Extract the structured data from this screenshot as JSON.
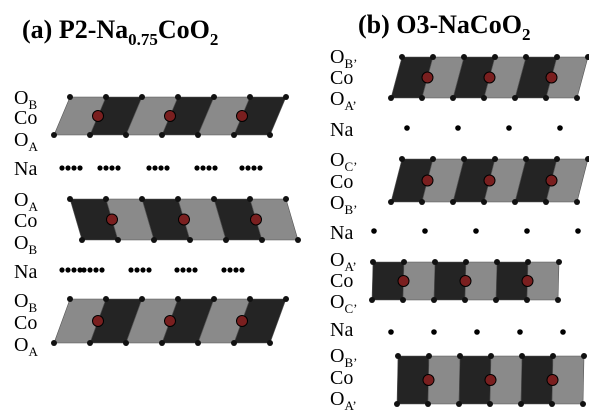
{
  "panels": [
    {
      "id": "a",
      "title": {
        "prefix": "(a) P2-Na",
        "sub1": "0.75",
        "mid": "CoO",
        "sub2": "2"
      },
      "layer_labels": [
        {
          "main": "O",
          "sub": "B"
        },
        {
          "main": "Co",
          "sub": ""
        },
        {
          "main": "O",
          "sub": "A"
        },
        {
          "main": "Na",
          "sub": ""
        },
        {
          "main": "O",
          "sub": "A"
        },
        {
          "main": "Co",
          "sub": ""
        },
        {
          "main": "O",
          "sub": "B"
        },
        {
          "main": "Na",
          "sub": ""
        },
        {
          "main": "O",
          "sub": "B"
        },
        {
          "main": "Co",
          "sub": ""
        },
        {
          "main": "O",
          "sub": "A"
        }
      ]
    },
    {
      "id": "b",
      "title": {
        "prefix": "(b) O3-NaCoO",
        "sub1": "2",
        "mid": "",
        "sub2": ""
      },
      "layer_labels": [
        {
          "main": "O",
          "sub": "B’"
        },
        {
          "main": "Co",
          "sub": ""
        },
        {
          "main": "O",
          "sub": "A’"
        },
        {
          "main": "Na",
          "sub": ""
        },
        {
          "main": "O",
          "sub": "C’"
        },
        {
          "main": "Co",
          "sub": ""
        },
        {
          "main": "O",
          "sub": "B’"
        },
        {
          "main": "Na",
          "sub": ""
        },
        {
          "main": "O",
          "sub": "A’"
        },
        {
          "main": "Co",
          "sub": ""
        },
        {
          "main": "O",
          "sub": "C’"
        },
        {
          "main": "Na",
          "sub": ""
        },
        {
          "main": "O",
          "sub": "B’"
        },
        {
          "main": "Co",
          "sub": ""
        },
        {
          "main": "O",
          "sub": "A’"
        }
      ]
    }
  ],
  "colors": {
    "octahedron_light": "#8a8a8a",
    "octahedron_dark": "#242424",
    "cobalt_atom": "#7a1f1f",
    "oxygen_atom": "#111111",
    "sodium_atom": "#000000"
  }
}
